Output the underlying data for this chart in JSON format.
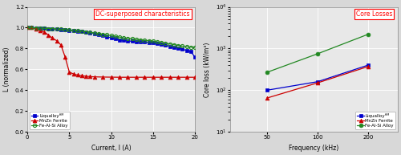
{
  "left": {
    "title": "DC-superposed characteristics",
    "xlabel": "Current, I (A)",
    "ylabel": "L (normalized)",
    "xlim": [
      0,
      20
    ],
    "ylim": [
      0,
      1.2
    ],
    "yticks": [
      0,
      0.2,
      0.4,
      0.6,
      0.8,
      1.0,
      1.2
    ],
    "xticks": [
      0,
      5,
      10,
      15,
      20
    ],
    "liqualloy_x": [
      0,
      0.5,
      1,
      1.5,
      2,
      2.5,
      3,
      3.5,
      4,
      4.5,
      5,
      5.5,
      6,
      6.5,
      7,
      7.5,
      8,
      8.5,
      9,
      9.5,
      10,
      10.5,
      11,
      11.5,
      12,
      12.5,
      13,
      13.5,
      14,
      14.5,
      15,
      15.5,
      16,
      16.5,
      17,
      17.5,
      18,
      18.5,
      19,
      19.5,
      20
    ],
    "liqualloy_y": [
      1.0,
      1.0,
      0.998,
      0.996,
      0.993,
      0.991,
      0.988,
      0.985,
      0.981,
      0.978,
      0.975,
      0.971,
      0.967,
      0.962,
      0.957,
      0.951,
      0.945,
      0.935,
      0.925,
      0.915,
      0.902,
      0.892,
      0.882,
      0.878,
      0.873,
      0.87,
      0.867,
      0.864,
      0.862,
      0.858,
      0.854,
      0.848,
      0.841,
      0.832,
      0.822,
      0.812,
      0.803,
      0.793,
      0.782,
      0.77,
      0.72
    ],
    "mnzn_x": [
      0,
      0.5,
      1,
      1.5,
      2,
      2.5,
      3,
      3.5,
      4,
      4.5,
      5,
      5.5,
      6,
      6.5,
      7,
      7.5,
      8,
      9,
      10,
      11,
      12,
      13,
      14,
      15,
      16,
      17,
      18,
      19,
      20
    ],
    "mnzn_y": [
      1.0,
      1.0,
      0.99,
      0.975,
      0.96,
      0.93,
      0.9,
      0.875,
      0.835,
      0.72,
      0.575,
      0.555,
      0.545,
      0.538,
      0.534,
      0.53,
      0.528,
      0.526,
      0.525,
      0.524,
      0.524,
      0.524,
      0.524,
      0.524,
      0.524,
      0.524,
      0.524,
      0.524,
      0.524
    ],
    "feAlSi_x": [
      0,
      0.5,
      1,
      1.5,
      2,
      2.5,
      3,
      3.5,
      4,
      4.5,
      5,
      5.5,
      6,
      6.5,
      7,
      7.5,
      8,
      8.5,
      9,
      9.5,
      10,
      10.5,
      11,
      11.5,
      12,
      12.5,
      13,
      13.5,
      14,
      14.5,
      15,
      15.5,
      16,
      16.5,
      17,
      17.5,
      18,
      18.5,
      19,
      19.5,
      20
    ],
    "feAlSi_y": [
      1.0,
      1.0,
      0.998,
      0.996,
      0.994,
      0.992,
      0.99,
      0.987,
      0.985,
      0.982,
      0.978,
      0.974,
      0.97,
      0.965,
      0.96,
      0.955,
      0.95,
      0.944,
      0.937,
      0.931,
      0.924,
      0.917,
      0.91,
      0.903,
      0.897,
      0.892,
      0.887,
      0.883,
      0.879,
      0.876,
      0.872,
      0.865,
      0.858,
      0.851,
      0.844,
      0.837,
      0.83,
      0.823,
      0.818,
      0.813,
      0.808
    ],
    "liqualloy_color": "#0000cc",
    "mnzn_color": "#cc0000",
    "feAlSi_color": "#228822",
    "bg_color": "#e8e8e8"
  },
  "right": {
    "title": "Core Losses",
    "xlabel": "Frequency (kHz)",
    "ylabel": "Core loss (kW/m³)",
    "xlim": [
      30,
      300
    ],
    "freq": [
      50,
      100,
      200
    ],
    "liqualloy_vals": [
      100,
      160,
      400
    ],
    "mnzn_vals": [
      65,
      150,
      370
    ],
    "feAlSi_vals": [
      270,
      750,
      2200
    ],
    "liqualloy_color": "#0000cc",
    "mnzn_color": "#cc0000",
    "feAlSi_color": "#228822",
    "bg_color": "#e8e8e8"
  },
  "bg_color": "#d8d8d8"
}
